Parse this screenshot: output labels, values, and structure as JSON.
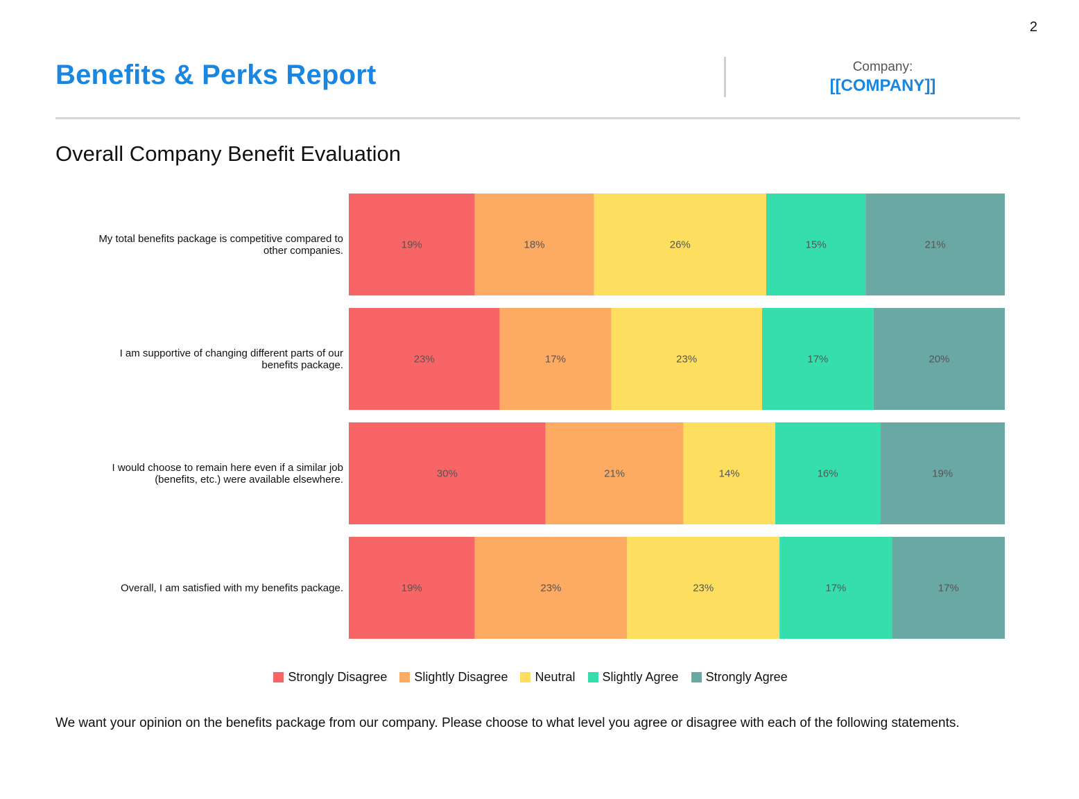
{
  "page_number": "2",
  "header": {
    "title": "Benefits & Perks Report",
    "company_label": "Company:",
    "company_value": "[[COMPANY]]"
  },
  "section_title": "Overall Company Benefit Evaluation",
  "footnote": "We want your opinion on the benefits package from our company. Please choose to what level you agree or disagree with each of the following statements.",
  "chart_data": {
    "type": "bar",
    "orientation": "horizontal",
    "stacked": true,
    "normalized_percent": true,
    "categories": [
      "My total benefits package is competitive compared to other companies.",
      "I am supportive of changing different parts of our benefits package.",
      "I would choose to remain here even if a similar job (benefits, etc.) were available elsewhere.",
      "Overall, I am satisfied with my benefits package."
    ],
    "series": [
      {
        "name": "Strongly Disagree",
        "color": "#f76566",
        "values": [
          19,
          23,
          30,
          19
        ]
      },
      {
        "name": "Slightly Disagree",
        "color": "#fdaa63",
        "values": [
          18,
          17,
          21,
          23
        ]
      },
      {
        "name": "Neutral",
        "color": "#fede5e",
        "values": [
          26,
          23,
          14,
          23
        ]
      },
      {
        "name": "Slightly Agree",
        "color": "#36deab",
        "values": [
          15,
          17,
          16,
          17
        ]
      },
      {
        "name": "Strongly Agree",
        "color": "#6aa8a3",
        "values": [
          21,
          20,
          19,
          17
        ]
      }
    ],
    "data_label_suffix": "%",
    "legend_position": "bottom",
    "grid": false
  }
}
